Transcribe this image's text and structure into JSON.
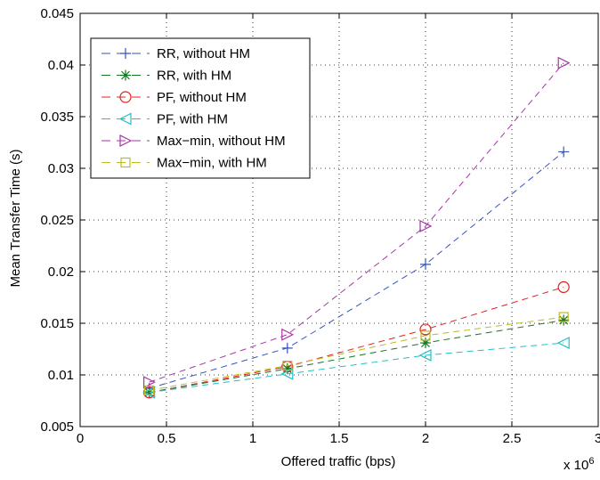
{
  "chart_data": {
    "type": "line",
    "title": "",
    "xlabel": "Offered traffic (bps)",
    "ylabel": "Mean Transfer Time (s)",
    "x_multiplier_label": "x 10",
    "x_multiplier_exponent": "6",
    "xlim": [
      0,
      3
    ],
    "ylim": [
      0.005,
      0.045
    ],
    "xticks": [
      0,
      0.5,
      1,
      1.5,
      2,
      2.5,
      3
    ],
    "xtick_labels": [
      "0",
      "0.5",
      "1",
      "1.5",
      "2",
      "2.5",
      "3"
    ],
    "yticks": [
      0.005,
      0.01,
      0.015,
      0.02,
      0.025,
      0.03,
      0.035,
      0.04,
      0.045
    ],
    "ytick_labels": [
      "0.005",
      "0.01",
      "0.015",
      "0.02",
      "0.025",
      "0.03",
      "0.035",
      "0.04",
      "0.045"
    ],
    "grid": true,
    "legend_position": "top-left",
    "x": [
      0.4,
      1.2,
      2.0,
      2.8
    ],
    "series": [
      {
        "name": "RR, without HM",
        "color": "#3355bb",
        "marker": "plus",
        "values": [
          0.0087,
          0.0126,
          0.0207,
          0.0316
        ]
      },
      {
        "name": "RR, with HM",
        "color": "#117722",
        "marker": "asterisk",
        "values": [
          0.0083,
          0.0106,
          0.0131,
          0.0153
        ]
      },
      {
        "name": "PF, without HM",
        "color": "#e02020",
        "marker": "circle",
        "values": [
          0.0083,
          0.0108,
          0.0144,
          0.0185
        ]
      },
      {
        "name": "PF, with HM",
        "color": "#20c0c8",
        "marker": "triangle-left",
        "values": [
          0.0083,
          0.0101,
          0.0119,
          0.0131
        ]
      },
      {
        "name": "Max−min, without HM",
        "color": "#aa33aa",
        "marker": "triangle-right",
        "values": [
          0.0093,
          0.0139,
          0.0244,
          0.0402
        ]
      },
      {
        "name": "Max−min, with HM",
        "color": "#bbbb22",
        "marker": "square",
        "values": [
          0.0085,
          0.0109,
          0.0138,
          0.0156
        ]
      }
    ]
  }
}
